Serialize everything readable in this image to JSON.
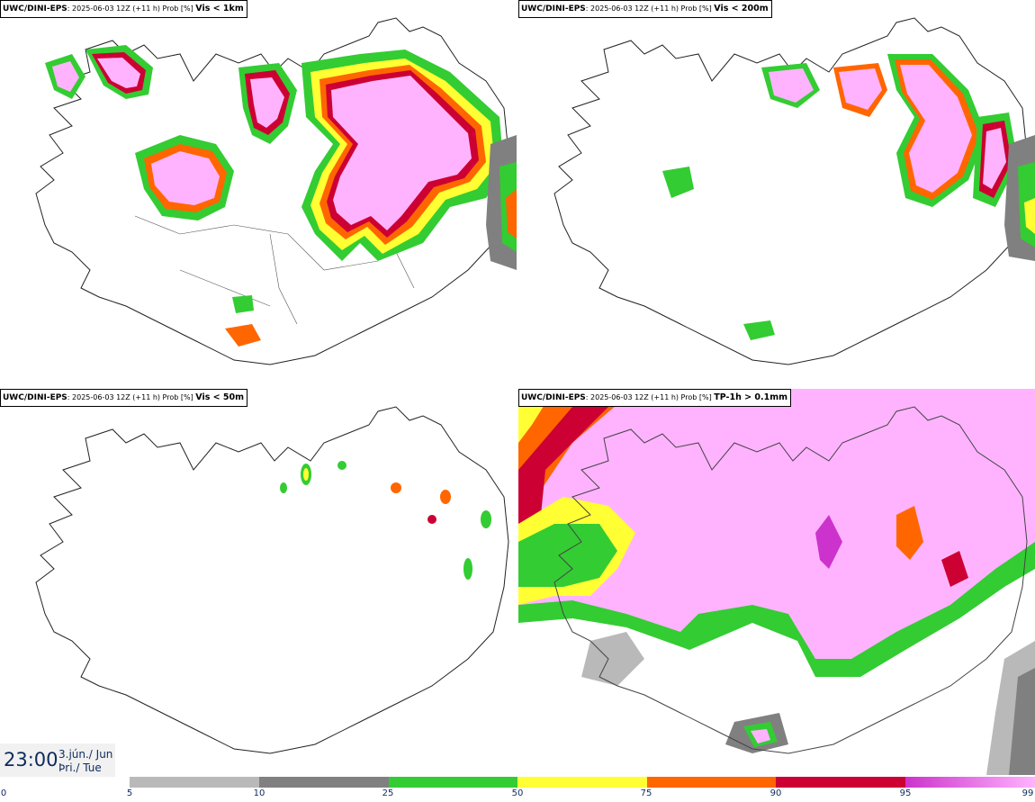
{
  "panels": [
    {
      "model": "UWC/DINI-EPS",
      "meta": ": 2025-06-03 12Z (+11 h) Prob [%] ",
      "variable": "Vis < 1km"
    },
    {
      "model": "UWC/DINI-EPS",
      "meta": ": 2025-06-03 12Z (+11 h) Prob [%] ",
      "variable": "Vis < 200m"
    },
    {
      "model": "UWC/DINI-EPS",
      "meta": ": 2025-06-03 12Z (+11 h) Prob [%] ",
      "variable": "Vis < 50m"
    },
    {
      "model": "UWC/DINI-EPS",
      "meta": ": 2025-06-03 12Z (+11 h) Prob [%] ",
      "variable": "TP-1h > 0.1mm"
    }
  ],
  "valid_time": {
    "time": "23:00",
    "date_line1": "3.jún./ Jun",
    "date_line2": "Þri./ Tue"
  },
  "colorbar": {
    "ticks": [
      "0",
      "5",
      "10",
      "25",
      "50",
      "75",
      "90",
      "95",
      "99"
    ],
    "colors": [
      "#ffffff",
      "#b9b9b9",
      "#808080",
      "#33cc33",
      "#ffff33",
      "#ff6600",
      "#cc0033",
      "#cc33cc",
      "#ffb3ff"
    ]
  }
}
